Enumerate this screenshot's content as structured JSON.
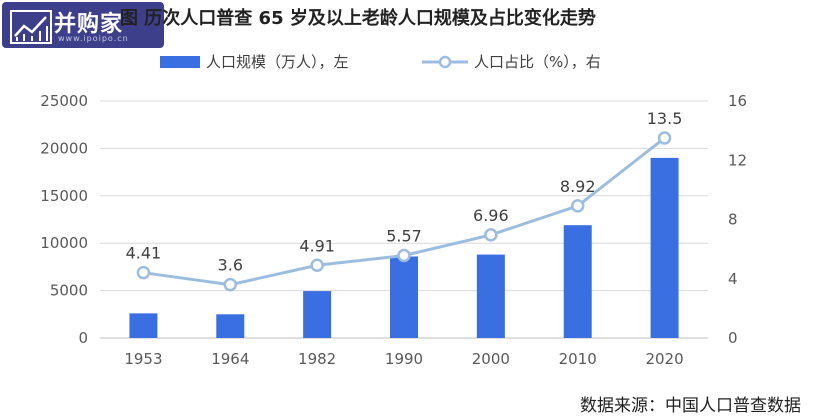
{
  "logo": {
    "text": "并购家",
    "url": "www.ipoipo.cn"
  },
  "header": {
    "title_prefix": "图",
    "title": "历次人口普查 65 岁及以上老龄人口规模及占比变化走势"
  },
  "legend": {
    "bar_label": "人口规模（万人），左",
    "line_label": "人口占比（%），右"
  },
  "source": "数据来源：中国人口普查数据",
  "colors": {
    "bar": "#3a6fe2",
    "line": "#9dbde0",
    "grid": "#d9d9d9",
    "axis_text": "#595959"
  },
  "chart_data": {
    "type": "bar",
    "categories": [
      "1953",
      "1964",
      "1982",
      "1990",
      "2000",
      "2010",
      "2020"
    ],
    "series": [
      {
        "name": "人口规模（万人），左",
        "type": "bar",
        "axis": "left",
        "values": [
          2600,
          2500,
          4950,
          8600,
          8800,
          11900,
          19000
        ]
      },
      {
        "name": "人口占比（%），右",
        "type": "line",
        "axis": "right",
        "values": [
          4.41,
          3.6,
          4.91,
          5.57,
          6.96,
          8.92,
          13.5
        ],
        "data_labels": [
          "4.41",
          "3.6",
          "4.91",
          "5.57",
          "6.96",
          "8.92",
          "13.5"
        ]
      }
    ],
    "y_left": {
      "ylim": [
        0,
        25000
      ],
      "ticks": [
        0,
        5000,
        10000,
        15000,
        20000,
        25000
      ],
      "tick_labels": [
        "0",
        "5000",
        "10000",
        "15000",
        "20000",
        "25000"
      ]
    },
    "y_right": {
      "ylim": [
        0,
        16
      ],
      "ticks": [
        0,
        4,
        8,
        12,
        16
      ],
      "tick_labels": [
        "0",
        "4",
        "8",
        "12",
        "16"
      ]
    },
    "grid": true,
    "legend_position": "top"
  }
}
